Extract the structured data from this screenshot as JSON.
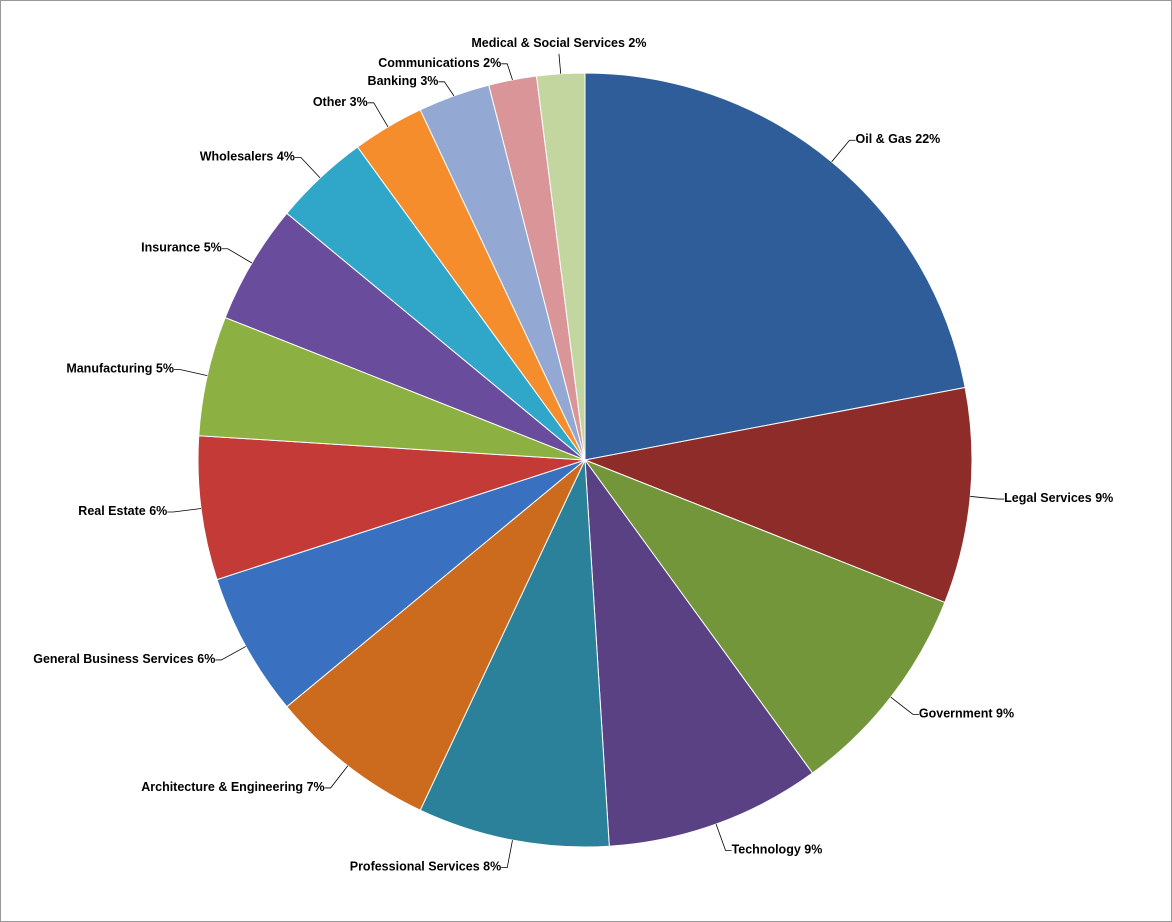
{
  "chart_data": {
    "type": "pie",
    "categories": [
      "Oil & Gas",
      "Legal Services",
      "Government",
      "Technology",
      "Professional Services",
      "Architecture & Engineering",
      "General Business Services",
      "Real Estate",
      "Manufacturing",
      "Insurance",
      "Wholesalers",
      "Other",
      "Banking",
      "Communications",
      "Medical & Social Services"
    ],
    "values": [
      22,
      9,
      9,
      9,
      8,
      7,
      6,
      6,
      5,
      5,
      4,
      3,
      3,
      2,
      2
    ],
    "value_labels": [
      "22%",
      "9%",
      "9%",
      "9%",
      "8%",
      "7%",
      "6%",
      "6%",
      "5%",
      "5%",
      "4%",
      "3%",
      "3%",
      "2%",
      "2%"
    ],
    "colors": [
      "#2f5d9a",
      "#8e2c2a",
      "#74963a",
      "#5a4184",
      "#2b8199",
      "#cc6a1e",
      "#3a70c0",
      "#c43a36",
      "#8cb042",
      "#6a4c9c",
      "#30a6c8",
      "#f58d2c",
      "#93a9d4",
      "#d99597",
      "#c4d6a0"
    ]
  }
}
